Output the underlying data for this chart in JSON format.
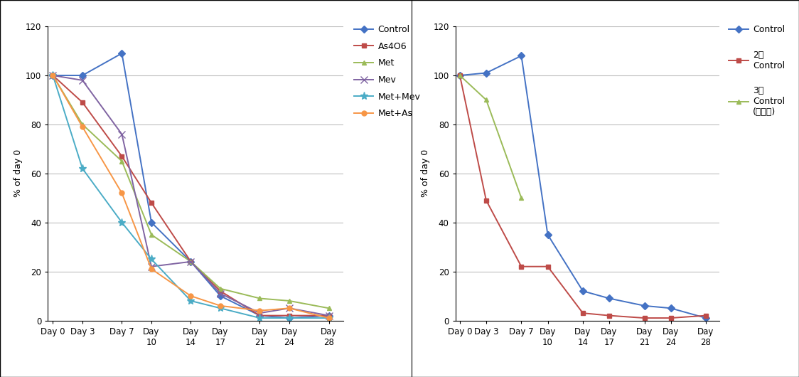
{
  "left_chart": {
    "days": [
      0,
      3,
      7,
      10,
      14,
      17,
      21,
      24,
      28
    ],
    "series": [
      {
        "label": "Control",
        "color": "#4472C4",
        "marker": "D",
        "markersize": 5,
        "values": [
          100,
          100,
          109,
          40,
          24,
          10,
          2,
          1,
          2
        ]
      },
      {
        "label": "As4O6",
        "color": "#BE4B48",
        "marker": "s",
        "markersize": 5,
        "values": [
          100,
          89,
          67,
          48,
          24,
          12,
          2,
          2,
          2
        ]
      },
      {
        "label": "Met",
        "color": "#9BBB59",
        "marker": "^",
        "markersize": 5,
        "values": [
          100,
          80,
          65,
          35,
          24,
          13,
          9,
          8,
          5
        ]
      },
      {
        "label": "Mev",
        "color": "#8064A2",
        "marker": "x",
        "markersize": 7,
        "values": [
          100,
          98,
          76,
          22,
          24,
          11,
          3,
          5,
          2
        ]
      },
      {
        "label": "Met+Mev",
        "color": "#4BACC6",
        "marker": "*",
        "markersize": 8,
        "values": [
          100,
          62,
          40,
          25,
          8,
          5,
          1,
          1,
          1
        ]
      },
      {
        "label": "Met+As",
        "color": "#F79646",
        "marker": "o",
        "markersize": 5,
        "values": [
          100,
          79,
          52,
          21,
          10,
          6,
          4,
          5,
          1
        ]
      }
    ],
    "ylabel": "% of day 0",
    "ylim": [
      0,
      120
    ],
    "yticks": [
      0,
      20,
      40,
      60,
      80,
      100,
      120
    ]
  },
  "right_chart": {
    "days": [
      0,
      3,
      7,
      10,
      14,
      17,
      21,
      24,
      28
    ],
    "series": [
      {
        "label": "Control",
        "color": "#4472C4",
        "marker": "D",
        "markersize": 5,
        "values": [
          100,
          101,
          108,
          35,
          12,
          9,
          6,
          5,
          1
        ]
      },
      {
        "label": "2자\nControl",
        "color": "#BE4B48",
        "marker": "s",
        "markersize": 5,
        "values": [
          100,
          49,
          22,
          22,
          3,
          2,
          1,
          1,
          2
        ]
      },
      {
        "label": "3자\nControl\n(코아텍)",
        "color": "#9BBB59",
        "marker": "^",
        "markersize": 5,
        "values": [
          100,
          90,
          50,
          null,
          null,
          null,
          null,
          null,
          null
        ]
      }
    ],
    "ylabel": "% of day 0",
    "ylim": [
      0,
      120
    ],
    "yticks": [
      0,
      20,
      40,
      60,
      80,
      100,
      120
    ]
  },
  "background_color": "#FFFFFF",
  "grid_color": "#BEBEBE",
  "tick_label_fontsize": 8.5,
  "axis_label_fontsize": 9,
  "legend_fontsize": 9
}
